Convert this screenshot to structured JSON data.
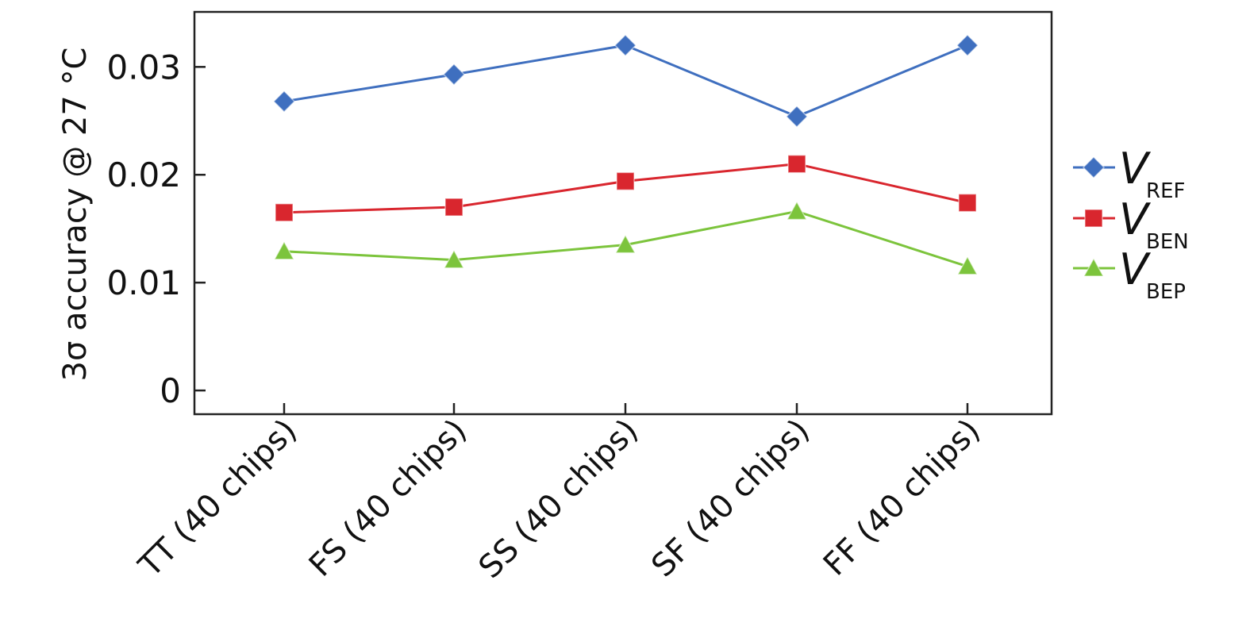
{
  "chart_data": {
    "type": "line",
    "title": "",
    "xlabel": "",
    "ylabel": "3σ accuracy @ 27 °C",
    "categories": [
      "TT (40 chips)",
      "FS (40 chips)",
      "SS (40 chips)",
      "SF (40 chips)",
      "FF (40 chips)"
    ],
    "ylim": [
      -0.0022,
      0.0351
    ],
    "yticks": [
      0,
      0.01,
      0.02,
      0.03
    ],
    "ytick_labels": [
      "0",
      "0.01",
      "0.02",
      "0.03"
    ],
    "grid": false,
    "legend_position": "right",
    "series": [
      {
        "name": "V",
        "subscript": "REF",
        "color": "#3f6fbf",
        "marker": "diamond",
        "values": [
          0.0268,
          0.0293,
          0.032,
          0.0254,
          0.032
        ]
      },
      {
        "name": "V",
        "subscript": "BEN",
        "color": "#d9262e",
        "marker": "square",
        "values": [
          0.0165,
          0.017,
          0.0194,
          0.021,
          0.0174
        ]
      },
      {
        "name": "V",
        "subscript": "BEP",
        "color": "#7cc43c",
        "marker": "triangle",
        "values": [
          0.0129,
          0.0121,
          0.0135,
          0.0166,
          0.0115
        ]
      }
    ]
  }
}
